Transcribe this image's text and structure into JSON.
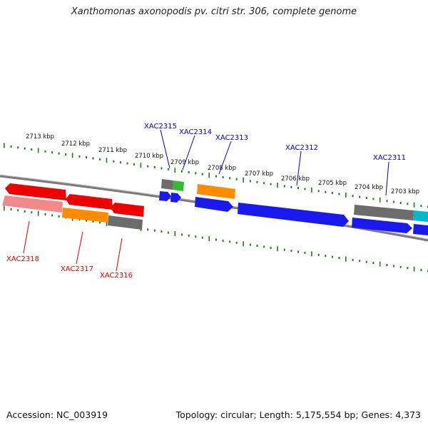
{
  "title": "Xanthomonas axonopodis pv. citri str. 306, complete genome",
  "footer": {
    "accession": "Accession: NC_003919",
    "summary": "Topology: circular; Length: 5,175,554 bp; Genes: 4,373"
  },
  "colors": {
    "forward_label": "#0000cc",
    "reverse_label": "#dd0000",
    "tick": "#1e7a1e",
    "backbone": "#808080"
  },
  "ticks": [
    "2713 kbp",
    "2712 kbp",
    "2711 kbp",
    "2710 kbp",
    "2709 kbp",
    "2708 kbp",
    "2707 kbp",
    "2706 kbp",
    "2705 kbp",
    "2704 kbp",
    "2703 kbp"
  ],
  "gene_labels": [
    {
      "text": "XAC2315",
      "strand": "forward"
    },
    {
      "text": "XAC2314",
      "strand": "forward"
    },
    {
      "text": "XAC2313",
      "strand": "forward"
    },
    {
      "text": "XAC2312",
      "strand": "forward"
    },
    {
      "text": "XAC2311",
      "strand": "forward"
    },
    {
      "text": "XAC2318",
      "strand": "reverse"
    },
    {
      "text": "XAC2317",
      "strand": "reverse"
    },
    {
      "text": "XAC2316",
      "strand": "reverse"
    }
  ]
}
